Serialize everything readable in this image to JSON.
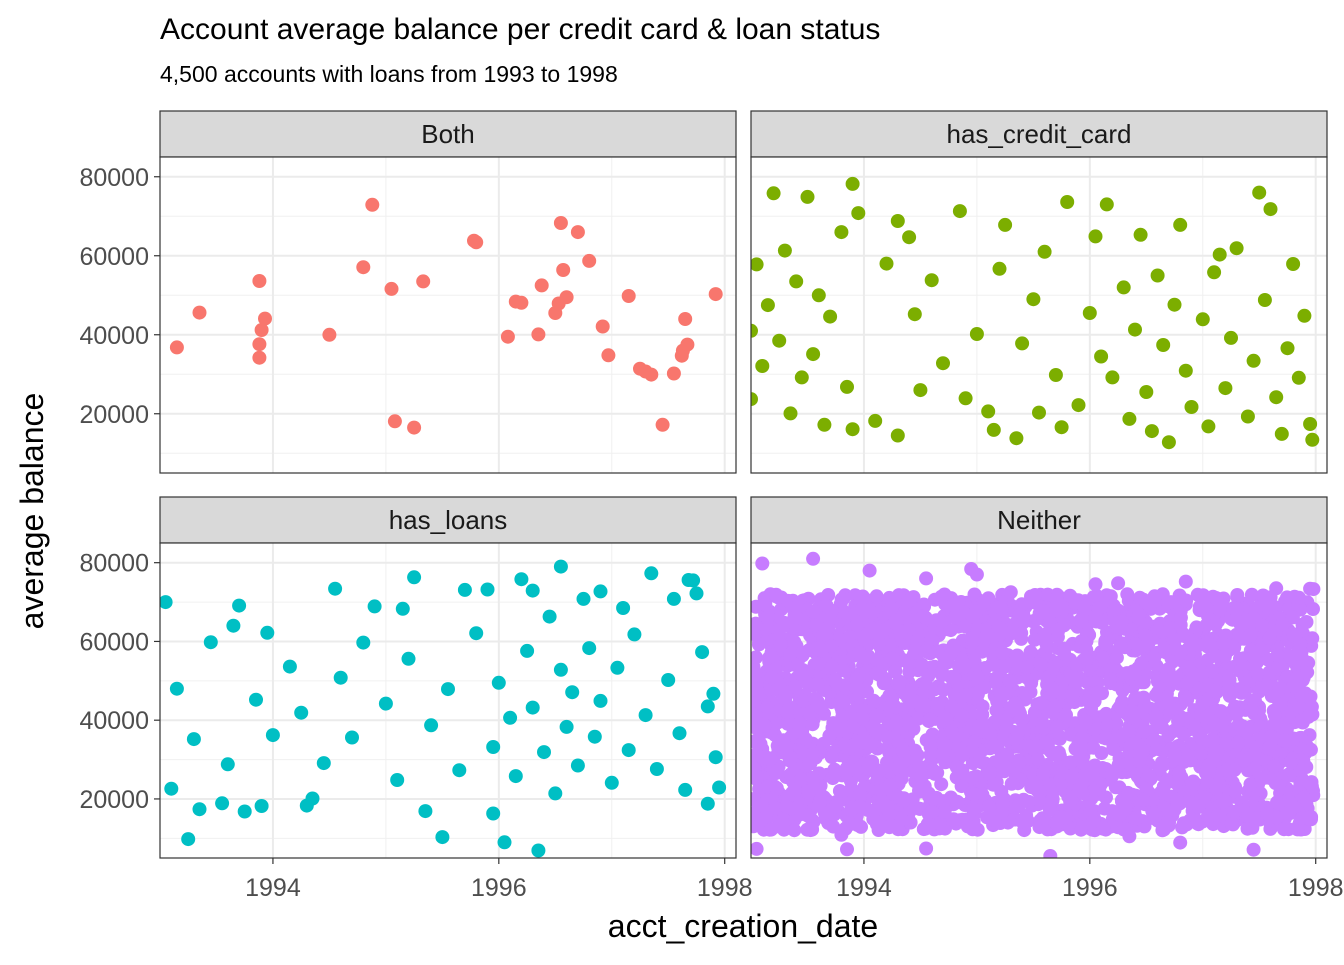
{
  "chart_data": {
    "type": "scatter",
    "title": "Account average balance per credit card & loan status",
    "subtitle": "4,500 accounts with loans from 1993 to 1998",
    "xlabel": "acct_creation_date",
    "ylabel": "average balance",
    "xlim": [
      1993.0,
      1998.1
    ],
    "ylim": [
      5000,
      85000
    ],
    "x_ticks": [
      1994,
      1996,
      1998
    ],
    "y_ticks": [
      20000,
      40000,
      60000,
      80000
    ],
    "grid": true,
    "legend": "none",
    "layout": "2x2 facets",
    "facets": [
      {
        "name": "Both",
        "color": "#F8766D",
        "points": [
          [
            1993.15,
            36800
          ],
          [
            1993.35,
            45600
          ],
          [
            1993.88,
            53600
          ],
          [
            1993.93,
            44100
          ],
          [
            1993.9,
            41200
          ],
          [
            1993.88,
            37600
          ],
          [
            1993.88,
            34200
          ],
          [
            1994.5,
            40000
          ],
          [
            1994.8,
            57100
          ],
          [
            1994.88,
            72900
          ],
          [
            1995.05,
            51600
          ],
          [
            1995.08,
            18100
          ],
          [
            1995.25,
            16500
          ],
          [
            1995.33,
            53500
          ],
          [
            1995.78,
            63800
          ],
          [
            1995.8,
            63400
          ],
          [
            1996.08,
            39500
          ],
          [
            1996.15,
            48400
          ],
          [
            1996.2,
            48100
          ],
          [
            1996.35,
            40100
          ],
          [
            1996.38,
            52500
          ],
          [
            1996.5,
            45500
          ],
          [
            1996.53,
            47900
          ],
          [
            1996.55,
            68300
          ],
          [
            1996.57,
            56400
          ],
          [
            1996.6,
            49500
          ],
          [
            1996.7,
            66000
          ],
          [
            1996.8,
            58700
          ],
          [
            1996.92,
            42100
          ],
          [
            1996.97,
            34800
          ],
          [
            1997.15,
            49800
          ],
          [
            1997.25,
            31400
          ],
          [
            1997.3,
            30700
          ],
          [
            1997.35,
            29900
          ],
          [
            1997.45,
            17200
          ],
          [
            1997.55,
            30200
          ],
          [
            1997.62,
            34700
          ],
          [
            1997.63,
            36000
          ],
          [
            1997.65,
            44000
          ],
          [
            1997.67,
            37500
          ],
          [
            1997.92,
            50300
          ]
        ]
      },
      {
        "name": "has_credit_card",
        "color": "#7CAE00",
        "points": [
          [
            1993.2,
            75800
          ],
          [
            1993.5,
            74900
          ],
          [
            1993.9,
            78200
          ],
          [
            1993.95,
            70800
          ],
          [
            1994.3,
            68800
          ],
          [
            1994.85,
            71300
          ],
          [
            1995.25,
            67800
          ],
          [
            1995.8,
            73600
          ],
          [
            1996.15,
            73000
          ],
          [
            1996.6,
            55000
          ],
          [
            1996.8,
            67800
          ],
          [
            1997.5,
            76000
          ],
          [
            1997.6,
            71800
          ],
          [
            1993.8,
            66000
          ],
          [
            1993.3,
            61300
          ],
          [
            1993.05,
            57800
          ],
          [
            1993.4,
            53500
          ],
          [
            1993.6,
            50000
          ],
          [
            1993.15,
            47500
          ],
          [
            1993.7,
            44600
          ],
          [
            1993.0,
            41000
          ],
          [
            1993.25,
            38500
          ],
          [
            1993.55,
            35100
          ],
          [
            1993.1,
            32100
          ],
          [
            1993.45,
            29200
          ],
          [
            1993.85,
            26800
          ],
          [
            1993.0,
            23700
          ],
          [
            1993.35,
            20100
          ],
          [
            1993.65,
            17200
          ],
          [
            1993.9,
            16100
          ],
          [
            1994.1,
            18200
          ],
          [
            1994.3,
            14500
          ],
          [
            1994.5,
            26000
          ],
          [
            1994.7,
            32800
          ],
          [
            1994.45,
            45200
          ],
          [
            1994.2,
            58000
          ],
          [
            1994.6,
            53800
          ],
          [
            1994.9,
            23900
          ],
          [
            1995.1,
            20600
          ],
          [
            1995.0,
            40200
          ],
          [
            1995.2,
            56700
          ],
          [
            1995.4,
            37800
          ],
          [
            1995.5,
            49000
          ],
          [
            1995.7,
            29800
          ],
          [
            1995.6,
            61000
          ],
          [
            1995.9,
            22200
          ],
          [
            1996.0,
            45500
          ],
          [
            1996.1,
            34500
          ],
          [
            1996.2,
            29200
          ],
          [
            1996.3,
            52000
          ],
          [
            1996.35,
            18700
          ],
          [
            1996.4,
            41300
          ],
          [
            1996.5,
            25500
          ],
          [
            1996.55,
            15600
          ],
          [
            1996.65,
            37400
          ],
          [
            1996.7,
            12800
          ],
          [
            1996.75,
            47600
          ],
          [
            1996.85,
            30900
          ],
          [
            1996.9,
            21700
          ],
          [
            1997.0,
            43900
          ],
          [
            1997.05,
            16800
          ],
          [
            1997.1,
            55800
          ],
          [
            1997.2,
            26500
          ],
          [
            1997.25,
            39200
          ],
          [
            1997.3,
            61900
          ],
          [
            1997.4,
            19300
          ],
          [
            1997.45,
            33400
          ],
          [
            1997.55,
            48800
          ],
          [
            1997.65,
            24200
          ],
          [
            1997.7,
            14900
          ],
          [
            1997.75,
            36600
          ],
          [
            1997.8,
            57900
          ],
          [
            1997.85,
            29100
          ],
          [
            1997.9,
            44800
          ],
          [
            1997.95,
            17400
          ],
          [
            1997.97,
            13400
          ],
          [
            1995.15,
            15900
          ],
          [
            1995.35,
            13800
          ],
          [
            1995.55,
            20300
          ],
          [
            1995.75,
            16600
          ],
          [
            1996.45,
            65300
          ],
          [
            1996.05,
            64900
          ],
          [
            1997.15,
            60300
          ],
          [
            1994.4,
            64700
          ]
        ]
      },
      {
        "name": "has_loans",
        "color": "#00BFC4",
        "points": [
          [
            1993.05,
            70000
          ],
          [
            1993.1,
            22600
          ],
          [
            1993.25,
            9800
          ],
          [
            1993.35,
            17400
          ],
          [
            1993.55,
            18900
          ],
          [
            1993.75,
            16800
          ],
          [
            1993.9,
            18200
          ],
          [
            1993.7,
            69100
          ],
          [
            1994.3,
            18300
          ],
          [
            1994.35,
            20100
          ],
          [
            1994.55,
            73400
          ],
          [
            1994.9,
            68900
          ],
          [
            1995.15,
            68300
          ],
          [
            1995.25,
            76300
          ],
          [
            1995.35,
            16900
          ],
          [
            1995.5,
            10300
          ],
          [
            1995.7,
            73100
          ],
          [
            1995.9,
            73200
          ],
          [
            1995.95,
            16300
          ],
          [
            1996.05,
            9000
          ],
          [
            1996.2,
            75800
          ],
          [
            1996.3,
            72900
          ],
          [
            1996.35,
            6900
          ],
          [
            1996.55,
            79000
          ],
          [
            1996.75,
            70800
          ],
          [
            1996.9,
            72700
          ],
          [
            1997.1,
            68500
          ],
          [
            1997.35,
            77300
          ],
          [
            1997.55,
            70800
          ],
          [
            1997.68,
            75600
          ],
          [
            1997.72,
            75500
          ],
          [
            1997.75,
            72200
          ],
          [
            1997.85,
            18800
          ],
          [
            1997.95,
            22900
          ],
          [
            1997.92,
            30600
          ],
          [
            1997.9,
            46700
          ],
          [
            1993.15,
            48000
          ],
          [
            1993.3,
            35200
          ],
          [
            1993.45,
            59800
          ],
          [
            1993.6,
            28800
          ],
          [
            1993.85,
            45200
          ],
          [
            1994.0,
            36200
          ],
          [
            1994.15,
            53600
          ],
          [
            1994.25,
            41900
          ],
          [
            1994.45,
            29100
          ],
          [
            1994.6,
            50800
          ],
          [
            1994.7,
            35600
          ],
          [
            1994.8,
            59700
          ],
          [
            1995.0,
            44200
          ],
          [
            1995.1,
            24800
          ],
          [
            1995.2,
            55600
          ],
          [
            1995.4,
            38700
          ],
          [
            1995.55,
            47900
          ],
          [
            1995.65,
            27300
          ],
          [
            1995.8,
            62100
          ],
          [
            1995.95,
            33200
          ],
          [
            1996.0,
            49500
          ],
          [
            1996.1,
            40600
          ],
          [
            1996.15,
            25800
          ],
          [
            1996.25,
            57600
          ],
          [
            1996.3,
            43200
          ],
          [
            1996.4,
            31900
          ],
          [
            1996.45,
            66300
          ],
          [
            1996.5,
            21400
          ],
          [
            1996.55,
            52800
          ],
          [
            1996.6,
            38300
          ],
          [
            1996.65,
            47100
          ],
          [
            1996.7,
            28500
          ],
          [
            1996.8,
            58300
          ],
          [
            1996.85,
            35800
          ],
          [
            1996.9,
            44900
          ],
          [
            1997.0,
            24100
          ],
          [
            1997.05,
            53300
          ],
          [
            1997.15,
            32400
          ],
          [
            1997.2,
            61800
          ],
          [
            1997.3,
            41300
          ],
          [
            1997.4,
            27600
          ],
          [
            1997.5,
            50200
          ],
          [
            1997.6,
            36700
          ],
          [
            1997.65,
            22300
          ],
          [
            1997.8,
            57300
          ],
          [
            1997.85,
            43500
          ],
          [
            1993.65,
            64000
          ],
          [
            1993.95,
            62200
          ]
        ]
      },
      {
        "name": "Neither",
        "color": "#C77CFF",
        "points": [
          [
            1993.1,
            79800
          ],
          [
            1993.55,
            81000
          ],
          [
            1994.05,
            78000
          ],
          [
            1994.55,
            76000
          ],
          [
            1994.95,
            78400
          ],
          [
            1995.0,
            77000
          ],
          [
            1995.3,
            72500
          ],
          [
            1996.05,
            74500
          ],
          [
            1996.25,
            74800
          ],
          [
            1996.85,
            75200
          ],
          [
            1997.65,
            73500
          ],
          [
            1997.95,
            73400
          ],
          [
            1997.98,
            73300
          ],
          [
            1993.05,
            7300
          ],
          [
            1993.85,
            7200
          ],
          [
            1994.55,
            7400
          ],
          [
            1995.65,
            5500
          ],
          [
            1996.8,
            8900
          ],
          [
            1997.45,
            7100
          ],
          [
            1993.25,
            13000
          ],
          [
            1993.8,
            10900
          ],
          [
            1996.35,
            10500
          ]
        ],
        "dense_band": {
          "x_range": [
            1993.0,
            1997.98
          ],
          "y_range": [
            12000,
            72000
          ],
          "approx_count": 3000
        }
      }
    ]
  }
}
